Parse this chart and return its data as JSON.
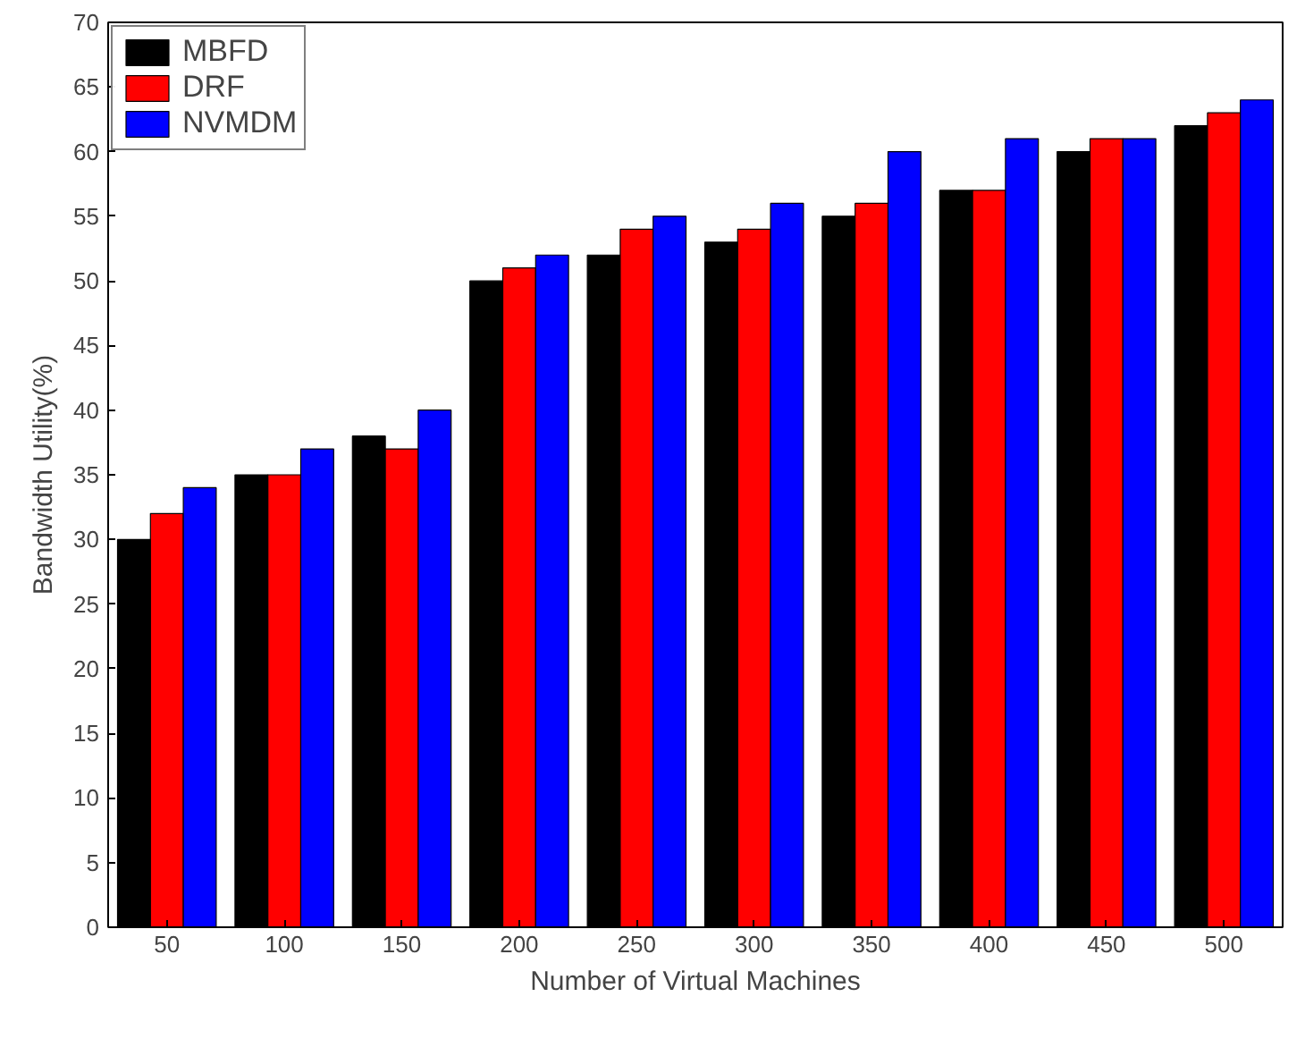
{
  "chart_data": {
    "type": "bar",
    "xlabel": "Number of Virtual Machines",
    "ylabel": "Bandwidth Utility(%)",
    "categories": [
      "50",
      "100",
      "150",
      "200",
      "250",
      "300",
      "350",
      "400",
      "450",
      "500"
    ],
    "series": [
      {
        "name": "MBFD",
        "color": "#000000",
        "values": [
          30,
          35,
          38,
          50,
          52,
          53,
          55,
          57,
          60,
          62
        ]
      },
      {
        "name": "DRF",
        "color": "#ff0000",
        "values": [
          32,
          35,
          37,
          51,
          54,
          54,
          56,
          57,
          61,
          63
        ]
      },
      {
        "name": "NVMDM",
        "color": "#0000ff",
        "values": [
          34,
          37,
          40,
          52,
          55,
          56,
          60,
          61,
          61,
          64
        ]
      }
    ],
    "ylim": [
      0,
      70
    ],
    "yticks": [
      0,
      5,
      10,
      15,
      20,
      25,
      30,
      35,
      40,
      45,
      50,
      55,
      60,
      65,
      70
    ],
    "grid": false,
    "legend": "top left"
  }
}
